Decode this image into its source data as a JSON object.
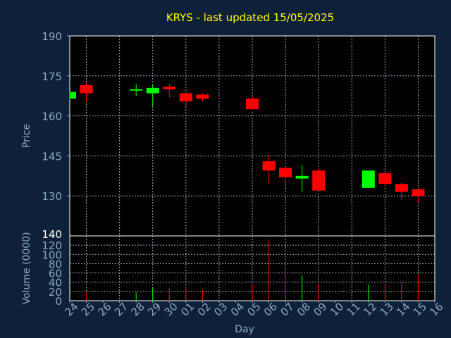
{
  "chart_data": [
    {
      "type": "candlestick",
      "title": "KRYS - last updated 15/05/2025",
      "ylabel": "Price",
      "ylim": [
        115,
        190
      ],
      "yticks": [
        130,
        145,
        160,
        175,
        190
      ],
      "xticks": [
        "24",
        "25",
        "26",
        "27",
        "28",
        "29",
        "30",
        "01",
        "02",
        "03",
        "04",
        "05",
        "06",
        "07",
        "08",
        "09",
        "10",
        "11",
        "12",
        "13",
        "14",
        "15",
        "16"
      ],
      "grid": true,
      "colors": {
        "up": "#00ff00",
        "down": "#ff0000",
        "title": "#ffff00",
        "axis": "#8aa8c4",
        "background": "#0f2138",
        "plot": "#000000"
      },
      "candles": [
        {
          "day": "24",
          "open": 166.5,
          "high": 169.0,
          "low": 166.0,
          "close": 169.0
        },
        {
          "day": "25",
          "open": 171.5,
          "high": 172.5,
          "low": 165.0,
          "close": 168.5
        },
        {
          "day": "28",
          "open": 169.5,
          "high": 172.0,
          "low": 167.5,
          "close": 170.0
        },
        {
          "day": "29",
          "open": 168.5,
          "high": 172.0,
          "low": 163.5,
          "close": 170.5
        },
        {
          "day": "30",
          "open": 171.0,
          "high": 172.0,
          "low": 167.0,
          "close": 170.0
        },
        {
          "day": "01",
          "open": 168.5,
          "high": 169.0,
          "low": 163.5,
          "close": 165.5
        },
        {
          "day": "02",
          "open": 168.0,
          "high": 168.5,
          "low": 165.5,
          "close": 166.5
        },
        {
          "day": "05",
          "open": 166.5,
          "high": 167.5,
          "low": 162.0,
          "close": 162.5
        },
        {
          "day": "06",
          "open": 143.0,
          "high": 145.5,
          "low": 134.5,
          "close": 139.5
        },
        {
          "day": "07",
          "open": 140.5,
          "high": 141.0,
          "low": 133.0,
          "close": 137.0
        },
        {
          "day": "08",
          "open": 136.5,
          "high": 141.5,
          "low": 131.5,
          "close": 137.5
        },
        {
          "day": "09",
          "open": 139.5,
          "high": 140.5,
          "low": 132.0,
          "close": 132.0
        },
        {
          "day": "12",
          "open": 133.0,
          "high": 139.5,
          "low": 133.0,
          "close": 139.5
        },
        {
          "day": "13",
          "open": 138.5,
          "high": 139.0,
          "low": 133.5,
          "close": 134.5
        },
        {
          "day": "14",
          "open": 134.5,
          "high": 135.0,
          "low": 128.5,
          "close": 131.5
        },
        {
          "day": "15",
          "open": 132.5,
          "high": 133.0,
          "low": 127.5,
          "close": 130.0
        }
      ]
    },
    {
      "type": "bar",
      "xlabel": "Day",
      "ylabel": "Volume (0000)",
      "ylim": [
        0,
        140
      ],
      "yticks": [
        0,
        20,
        40,
        60,
        80,
        100,
        120,
        140
      ],
      "xticks": [
        "24",
        "25",
        "26",
        "27",
        "28",
        "29",
        "30",
        "01",
        "02",
        "03",
        "04",
        "05",
        "06",
        "07",
        "08",
        "09",
        "10",
        "11",
        "12",
        "13",
        "14",
        "15",
        "16"
      ],
      "grid": true,
      "volumes": [
        {
          "day": "25",
          "value": 18,
          "direction": "down"
        },
        {
          "day": "28",
          "value": 18,
          "direction": "up"
        },
        {
          "day": "29",
          "value": 28,
          "direction": "up"
        },
        {
          "day": "30",
          "value": 26,
          "direction": "down"
        },
        {
          "day": "01",
          "value": 30,
          "direction": "down"
        },
        {
          "day": "02",
          "value": 24,
          "direction": "down"
        },
        {
          "day": "05",
          "value": 36,
          "direction": "down"
        },
        {
          "day": "06",
          "value": 133,
          "direction": "down"
        },
        {
          "day": "07",
          "value": 74,
          "direction": "down"
        },
        {
          "day": "08",
          "value": 55,
          "direction": "up"
        },
        {
          "day": "09",
          "value": 35,
          "direction": "down"
        },
        {
          "day": "12",
          "value": 35,
          "direction": "up"
        },
        {
          "day": "13",
          "value": 34,
          "direction": "down"
        },
        {
          "day": "14",
          "value": 40,
          "direction": "down"
        },
        {
          "day": "15",
          "value": 58,
          "direction": "down"
        }
      ]
    }
  ]
}
